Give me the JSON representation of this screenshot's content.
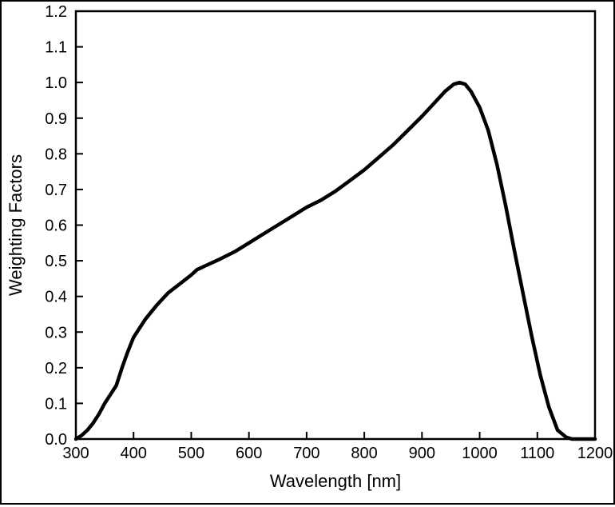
{
  "figure": {
    "background_color": "#ffffff",
    "frame_color": "#000000"
  },
  "chart_data": {
    "type": "line",
    "title": "",
    "xlabel": "Wavelength [nm]",
    "ylabel": "Weighting Factors",
    "xlim": [
      300,
      1200
    ],
    "ylim": [
      0,
      1.2
    ],
    "xticks": [
      300,
      400,
      500,
      600,
      700,
      800,
      900,
      1000,
      1100,
      1200
    ],
    "yticks": [
      0,
      0.1,
      0.2,
      0.3,
      0.4,
      0.5,
      0.6,
      0.7,
      0.8,
      0.9,
      1.0,
      1.1,
      1.2
    ],
    "ytick_labels": [
      "0.0",
      "0.1",
      "0.2",
      "0.3",
      "0.4",
      "0.5",
      "0.6",
      "0.7",
      "0.8",
      "0.9",
      "1.0",
      "1.1",
      "1.2"
    ],
    "grid": false,
    "legend": null,
    "line_color": "#000000",
    "line_width": 4.5,
    "series": [
      {
        "name": "weighting-factors",
        "color": "#000000",
        "x": [
          300,
          310,
          320,
          330,
          340,
          350,
          360,
          370,
          380,
          390,
          400,
          420,
          440,
          460,
          480,
          500,
          510,
          530,
          550,
          575,
          600,
          625,
          650,
          675,
          700,
          725,
          750,
          775,
          800,
          825,
          850,
          875,
          900,
          920,
          940,
          955,
          965,
          975,
          985,
          1000,
          1015,
          1030,
          1045,
          1060,
          1075,
          1090,
          1105,
          1120,
          1135,
          1150,
          1160,
          1200
        ],
        "y": [
          0.0,
          0.01,
          0.025,
          0.045,
          0.07,
          0.1,
          0.125,
          0.15,
          0.2,
          0.245,
          0.285,
          0.335,
          0.375,
          0.41,
          0.435,
          0.46,
          0.475,
          0.49,
          0.505,
          0.525,
          0.55,
          0.575,
          0.6,
          0.625,
          0.65,
          0.67,
          0.695,
          0.725,
          0.755,
          0.79,
          0.825,
          0.865,
          0.905,
          0.94,
          0.975,
          0.995,
          1.0,
          0.995,
          0.975,
          0.93,
          0.865,
          0.77,
          0.655,
          0.53,
          0.41,
          0.29,
          0.18,
          0.09,
          0.025,
          0.005,
          0.0,
          0.0
        ]
      }
    ]
  }
}
